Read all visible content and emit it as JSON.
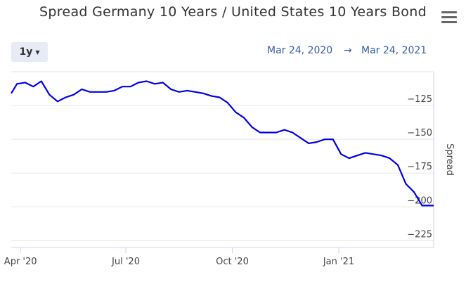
{
  "title": "Spread Germany 10 Years / United States 10 Years Bond",
  "range_selector": {
    "label": "1y"
  },
  "date_range": {
    "from": "Mar 24, 2020",
    "arrow": "→",
    "to": "Mar 24, 2021"
  },
  "colors": {
    "line": "#0000e6",
    "grid": "#e6e6e6",
    "axis": "#ccd6eb"
  },
  "icons": {
    "menu": "hamburger-menu-icon"
  },
  "chart_data": {
    "type": "line",
    "title": "Spread Germany 10 Years / United States 10 Years Bond",
    "xlabel": "",
    "ylabel": "Spread",
    "ylim": [
      -230,
      -100
    ],
    "yticks": [
      -225,
      -200,
      -175,
      -150,
      -125
    ],
    "xlim": [
      "2020-03-24",
      "2021-03-24"
    ],
    "xticks": [
      {
        "date": "2020-04-01",
        "label": "Apr '20"
      },
      {
        "date": "2020-07-01",
        "label": "Jul '20"
      },
      {
        "date": "2020-10-01",
        "label": "Oct '20"
      },
      {
        "date": "2021-01-01",
        "label": "Jan '21"
      }
    ],
    "grid": true,
    "legend": "none",
    "series": [
      {
        "x": [
          "2020-03-24",
          "2020-03-29",
          "2020-04-05",
          "2020-04-12",
          "2020-04-19",
          "2020-04-26",
          "2020-05-03",
          "2020-05-10",
          "2020-05-17",
          "2020-05-24",
          "2020-05-31",
          "2020-06-07",
          "2020-06-14",
          "2020-06-21",
          "2020-06-28",
          "2020-07-05",
          "2020-07-12",
          "2020-07-19",
          "2020-07-26",
          "2020-08-02",
          "2020-08-09",
          "2020-08-16",
          "2020-08-23",
          "2020-08-30",
          "2020-09-06",
          "2020-09-13",
          "2020-09-20",
          "2020-09-27",
          "2020-10-04",
          "2020-10-11",
          "2020-10-18",
          "2020-10-25",
          "2020-11-01",
          "2020-11-08",
          "2020-11-15",
          "2020-11-22",
          "2020-11-29",
          "2020-12-06",
          "2020-12-13",
          "2020-12-20",
          "2020-12-27",
          "2021-01-03",
          "2021-01-10",
          "2021-01-17",
          "2021-01-24",
          "2021-01-31",
          "2021-02-07",
          "2021-02-14",
          "2021-02-21",
          "2021-02-28",
          "2021-03-07",
          "2021-03-14",
          "2021-03-21",
          "2021-03-24"
        ],
        "values": [
          -116,
          -109,
          -108,
          -111,
          -107,
          -117,
          -122,
          -119,
          -117,
          -113,
          -115,
          -115,
          -115,
          -114,
          -111,
          -111,
          -108,
          -107,
          -109,
          -108,
          -113,
          -115,
          -114,
          -115,
          -116,
          -118,
          -119,
          -123,
          -130,
          -134,
          -141,
          -145,
          -145,
          -145,
          -143,
          -145,
          -149,
          -153,
          -152,
          -150,
          -150,
          -161,
          -164,
          -162,
          -160,
          -161,
          -162,
          -164,
          -169,
          -183,
          -189,
          -199,
          -199,
          -199
        ]
      }
    ]
  }
}
